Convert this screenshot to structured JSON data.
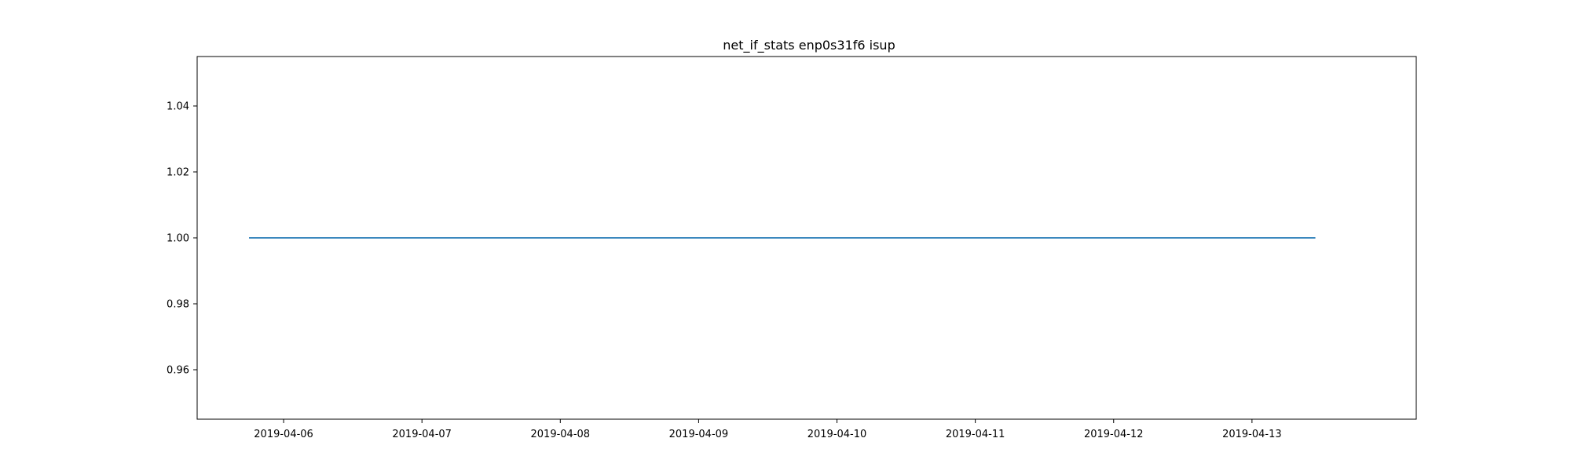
{
  "chart_data": {
    "type": "line",
    "title": "net_if_stats enp0s31f6 isup",
    "xlabel": "",
    "ylabel": "",
    "x_type": "date",
    "xlim": [
      "2019-04-05T09:00",
      "2019-04-14T04:30"
    ],
    "ylim": [
      0.945,
      1.055
    ],
    "x_ticks": [
      "2019-04-06",
      "2019-04-07",
      "2019-04-08",
      "2019-04-09",
      "2019-04-10",
      "2019-04-11",
      "2019-04-12",
      "2019-04-13"
    ],
    "y_ticks": [
      0.96,
      0.98,
      1.0,
      1.02,
      1.04
    ],
    "y_tick_labels": [
      "0.96",
      "0.98",
      "1.00",
      "1.02",
      "1.04"
    ],
    "grid": false,
    "legend": "none",
    "series": [
      {
        "color": "#1f77b4",
        "x": [
          "2019-04-05T18:00",
          "2019-04-13T11:00"
        ],
        "y": [
          1.0,
          1.0
        ]
      }
    ]
  }
}
